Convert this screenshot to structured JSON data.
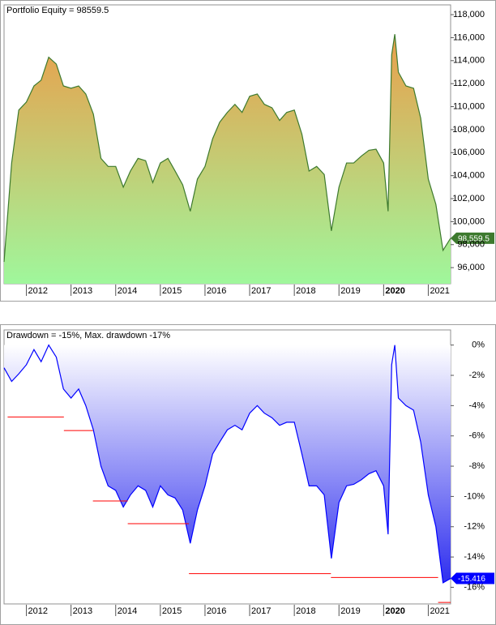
{
  "chart_data": [
    {
      "type": "area",
      "title": "Portfolio Equity = 98559.5",
      "x": [
        2011.5,
        2011.67,
        2011.83,
        2012,
        2012.17,
        2012.33,
        2012.5,
        2012.67,
        2012.83,
        2013,
        2013.17,
        2013.33,
        2013.5,
        2013.67,
        2013.83,
        2014,
        2014.17,
        2014.33,
        2014.5,
        2014.67,
        2014.83,
        2015,
        2015.17,
        2015.33,
        2015.5,
        2015.67,
        2015.83,
        2016,
        2016.17,
        2016.33,
        2016.5,
        2016.67,
        2016.83,
        2017,
        2017.17,
        2017.33,
        2017.5,
        2017.67,
        2017.83,
        2018,
        2018.17,
        2018.33,
        2018.5,
        2018.67,
        2018.83,
        2019,
        2019.17,
        2019.33,
        2019.5,
        2019.67,
        2019.83,
        2020,
        2020.1,
        2020.18,
        2020.25,
        2020.33,
        2020.5,
        2020.67,
        2020.83,
        2021,
        2021.17,
        2021.33,
        2021.5
      ],
      "series": [
        {
          "color": "#3d7a2e",
          "fill_colors": [
            "#e9a04c",
            "#9ff79c"
          ],
          "end_label": "98,559.5",
          "values": [
            96500,
            105100,
            109700,
            110400,
            111800,
            112300,
            114300,
            113700,
            111800,
            111600,
            111800,
            111100,
            109350,
            105500,
            104800,
            104800,
            103000,
            104400,
            105500,
            105300,
            103400,
            105100,
            105500,
            104400,
            103200,
            100900,
            103700,
            104800,
            107200,
            108650,
            109500,
            110200,
            109500,
            110900,
            111100,
            110200,
            109900,
            108800,
            109500,
            109700,
            107600,
            104400,
            104800,
            104100,
            99200,
            103000,
            105100,
            105100,
            105700,
            106200,
            106300,
            105100,
            100900,
            114500,
            116300,
            113000,
            111800,
            111600,
            109000,
            103700,
            101500,
            97500,
            98559.5
          ]
        }
      ],
      "fill_base": "bottom",
      "xlim": [
        2011.5,
        2021.5
      ],
      "xticks": [
        2012,
        2013,
        2014,
        2015,
        2016,
        2017,
        2018,
        2019,
        {
          "value": 2020,
          "label": "2020",
          "bold": true
        },
        2021
      ],
      "ylim": [
        94600,
        118850
      ],
      "yticks": [
        {
          "value": 96000,
          "label": "96,000"
        },
        {
          "value": 98000,
          "label": "98,000"
        },
        {
          "value": 100000,
          "label": "100,000"
        },
        {
          "value": 102000,
          "label": "102,000"
        },
        {
          "value": 104000,
          "label": "104,000"
        },
        {
          "value": 106000,
          "label": "106,000"
        },
        {
          "value": 108000,
          "label": "108,000"
        },
        {
          "value": 110000,
          "label": "110,000"
        },
        {
          "value": 112000,
          "label": "112,000"
        },
        {
          "value": 114000,
          "label": "114,000"
        },
        {
          "value": 116000,
          "label": "116,000"
        },
        {
          "value": 118000,
          "label": "118,000"
        }
      ],
      "grid": false
    },
    {
      "type": "area",
      "title": "Drawdown = -15%, Max. drawdown -17%",
      "x": [
        2011.5,
        2011.67,
        2011.83,
        2012,
        2012.17,
        2012.33,
        2012.5,
        2012.67,
        2012.83,
        2013,
        2013.17,
        2013.33,
        2013.5,
        2013.67,
        2013.83,
        2014,
        2014.17,
        2014.33,
        2014.5,
        2014.67,
        2014.83,
        2015,
        2015.17,
        2015.33,
        2015.5,
        2015.67,
        2015.83,
        2016,
        2016.17,
        2016.33,
        2016.5,
        2016.67,
        2016.83,
        2017,
        2017.17,
        2017.33,
        2017.5,
        2017.67,
        2017.83,
        2018,
        2018.17,
        2018.33,
        2018.5,
        2018.67,
        2018.83,
        2019,
        2019.17,
        2019.33,
        2019.5,
        2019.67,
        2019.83,
        2020,
        2020.1,
        2020.18,
        2020.25,
        2020.33,
        2020.5,
        2020.67,
        2020.83,
        2021,
        2021.17,
        2021.33,
        2021.5
      ],
      "series": [
        {
          "color": "#0000ff",
          "fill_colors": [
            "#ffffff",
            "#3434ef"
          ],
          "label_last": true,
          "values": [
            -1.5,
            -2.4,
            -1.9,
            -1.3,
            -0.3,
            -1.1,
            0,
            -0.8,
            -2.9,
            -3.5,
            -2.9,
            -4.0,
            -5.6,
            -8.0,
            -9.3,
            -9.6,
            -10.7,
            -9.9,
            -9.3,
            -9.6,
            -10.7,
            -9.3,
            -9.9,
            -10.1,
            -10.9,
            -13.1,
            -10.9,
            -9.3,
            -7.2,
            -6.4,
            -5.6,
            -5.3,
            -5.6,
            -4.5,
            -4.0,
            -4.5,
            -4.8,
            -5.3,
            -5.1,
            -5.1,
            -7.2,
            -9.3,
            -9.3,
            -9.9,
            -14.1,
            -10.4,
            -9.3,
            -9.2,
            -8.9,
            -8.5,
            -8.3,
            -9.3,
            -12.5,
            -1.3,
            0,
            -3.5,
            -4.0,
            -4.3,
            -6.4,
            -9.9,
            -12.0,
            -15.7,
            -15.416
          ]
        },
        {
          "color": "#ff0000",
          "style": "step",
          "x": [
            2011.58,
            2012.84,
            2013.49,
            2014.27,
            2015.64,
            2018.82,
            2021.22
          ],
          "values": [
            -4.75,
            -5.65,
            -10.3,
            -11.8,
            -15.1,
            -15.35,
            -17
          ]
        }
      ],
      "fill_base": "zero",
      "xlim": [
        2011.5,
        2021.5
      ],
      "xticks": [
        2012,
        2013,
        2014,
        2015,
        2016,
        2017,
        2018,
        2019,
        {
          "value": 2020,
          "label": "2020",
          "bold": true
        },
        2021
      ],
      "ylim": [
        -17.1,
        1
      ],
      "yticks": [
        {
          "value": 0,
          "label": "0%"
        },
        {
          "value": -2,
          "label": "-2%"
        },
        {
          "value": -4,
          "label": "-4%"
        },
        {
          "value": -6,
          "label": "-6%"
        },
        {
          "value": -8,
          "label": "-8%"
        },
        {
          "value": -10,
          "label": "-10%"
        },
        {
          "value": -12,
          "label": "-12%"
        },
        {
          "value": -14,
          "label": "-14%"
        },
        {
          "value": -16,
          "label": "-16%"
        }
      ],
      "grid": false
    }
  ]
}
